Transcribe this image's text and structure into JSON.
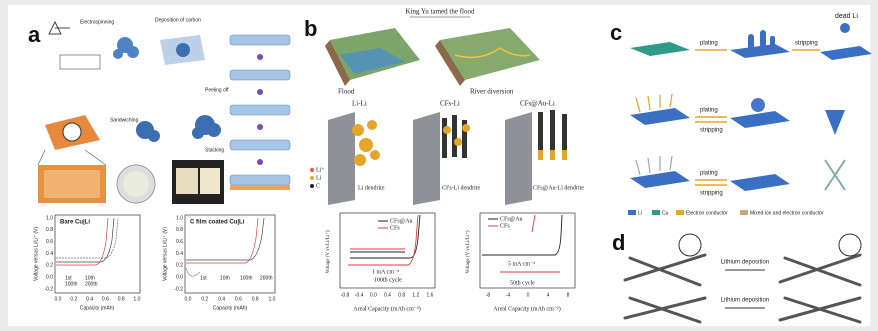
{
  "panel_a": {
    "label": "a",
    "steps": [
      "Electrospinning",
      "Deposition of carbon",
      "Peeling off",
      "Stacking",
      "Sandwiching"
    ],
    "chart_left": {
      "title": "Bare Cu|Li",
      "y_label": "Voltage versus Li/Li⁺ (V)",
      "x_label": "Capacity (mAh)",
      "xticks": [
        "0.0",
        "0.2",
        "0.4",
        "0.6",
        "0.8",
        "1.0"
      ],
      "yticks": [
        "-0.2",
        "0.0",
        "0.2",
        "0.4",
        "0.6",
        "0.8",
        "1.0"
      ],
      "legend": [
        "1st",
        "10th",
        "100th",
        "200th"
      ]
    },
    "chart_right": {
      "title": "C film coated Cu|Li",
      "y_label": "Voltage versus Li/Li⁺ (V)",
      "x_label": "Capacity (mAh)",
      "xticks": [
        "0.0",
        "0.2",
        "0.4",
        "0.6",
        "0.8",
        "1.0"
      ],
      "yticks": [
        "-0.2",
        "0.0",
        "0.2",
        "0.4",
        "0.6",
        "0.8",
        "1.0"
      ],
      "legend": [
        "1st",
        "10th",
        "100th",
        "200th"
      ]
    }
  },
  "panel_b": {
    "label": "b",
    "title": "King Yu tamed the flood",
    "captions": [
      "Flood",
      "River diversion"
    ],
    "columns": [
      "Li-Li",
      "CFs-Li",
      "CFs@Au-Li"
    ],
    "dendrites": [
      "Li dendrite",
      "CFs-Li dendrite",
      "CFs@Au-Li dendrite"
    ],
    "legend": [
      "Li⁺",
      "Li",
      "C"
    ],
    "chart_left": {
      "legend": [
        "CFs@Au",
        "CFs"
      ],
      "notes": [
        "1 mA cm⁻²",
        "100th cycle"
      ],
      "x_label": "Areal Capacity (mAh cm⁻²)",
      "y_label": "Voltage (V vs Li/Li⁺)",
      "xticks": [
        "-0.8",
        "-0.4",
        "0.0",
        "0.4",
        "0.8",
        "1.2",
        "1.6"
      ]
    },
    "chart_right": {
      "legend": [
        "CFs@Au",
        "CFs"
      ],
      "notes": [
        "5 mA cm⁻²",
        "50th cycle"
      ],
      "x_label": "Areal Capacity (mAh cm⁻²)",
      "y_label": "Voltage (V vs Li/Li⁺)",
      "xticks": [
        "-8",
        "-4",
        "0",
        "4",
        "8"
      ]
    }
  },
  "panel_c": {
    "label": "c",
    "arrows": [
      "plating",
      "stripping",
      "plating",
      "stripping",
      "plating",
      "stripping"
    ],
    "dead": "dead Li",
    "legend": [
      "Li",
      "Cu",
      "Electron conductor",
      "Mixed ion and electron conductor"
    ]
  },
  "panel_d": {
    "label": "d",
    "arrows": [
      "Lithium deposition",
      "Lithium deposition"
    ]
  }
}
